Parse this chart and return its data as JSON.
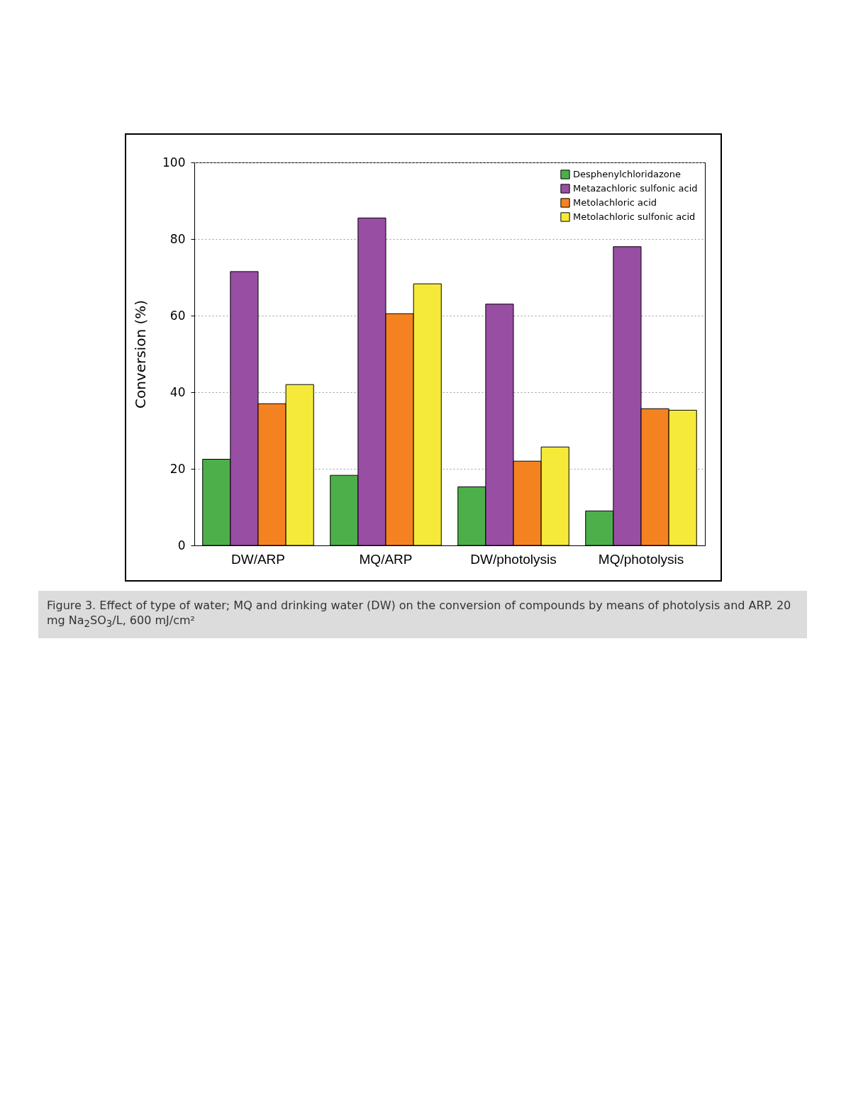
{
  "chart_data": {
    "type": "bar",
    "ylabel": "Conversion (%)",
    "categories": [
      "DW/ARP",
      "MQ/ARP",
      "DW/photolysis",
      "MQ/photolysis"
    ],
    "series": [
      {
        "name": "Desphenylchloridazone",
        "color": "#4daf4a",
        "values": [
          22.5,
          18.3,
          15.3,
          9
        ]
      },
      {
        "name": "Metazachloric sulfonic acid",
        "color": "#984ea3",
        "values": [
          71.5,
          85.5,
          63,
          78
        ]
      },
      {
        "name": "Metolachloric acid",
        "color": "#f58220",
        "values": [
          37,
          60.5,
          22,
          35.7
        ]
      },
      {
        "name": "Metolachloric sulfonic acid",
        "color": "#f5ea3a",
        "values": [
          42,
          68.3,
          25.7,
          35.3
        ]
      }
    ],
    "ylim": [
      0,
      100
    ],
    "yticks": [
      0,
      20,
      40,
      60,
      80,
      100
    ],
    "grid": "y",
    "legend": "top right",
    "annotations": [
      "Figure 3. Effect of type of water; MQ and drinking water (DW) on the conversion of compounds by means of photolysis and ARP. 20 mg Na$_{2}$SO$_{3}$/L, 600 mJ/cm²"
    ]
  }
}
